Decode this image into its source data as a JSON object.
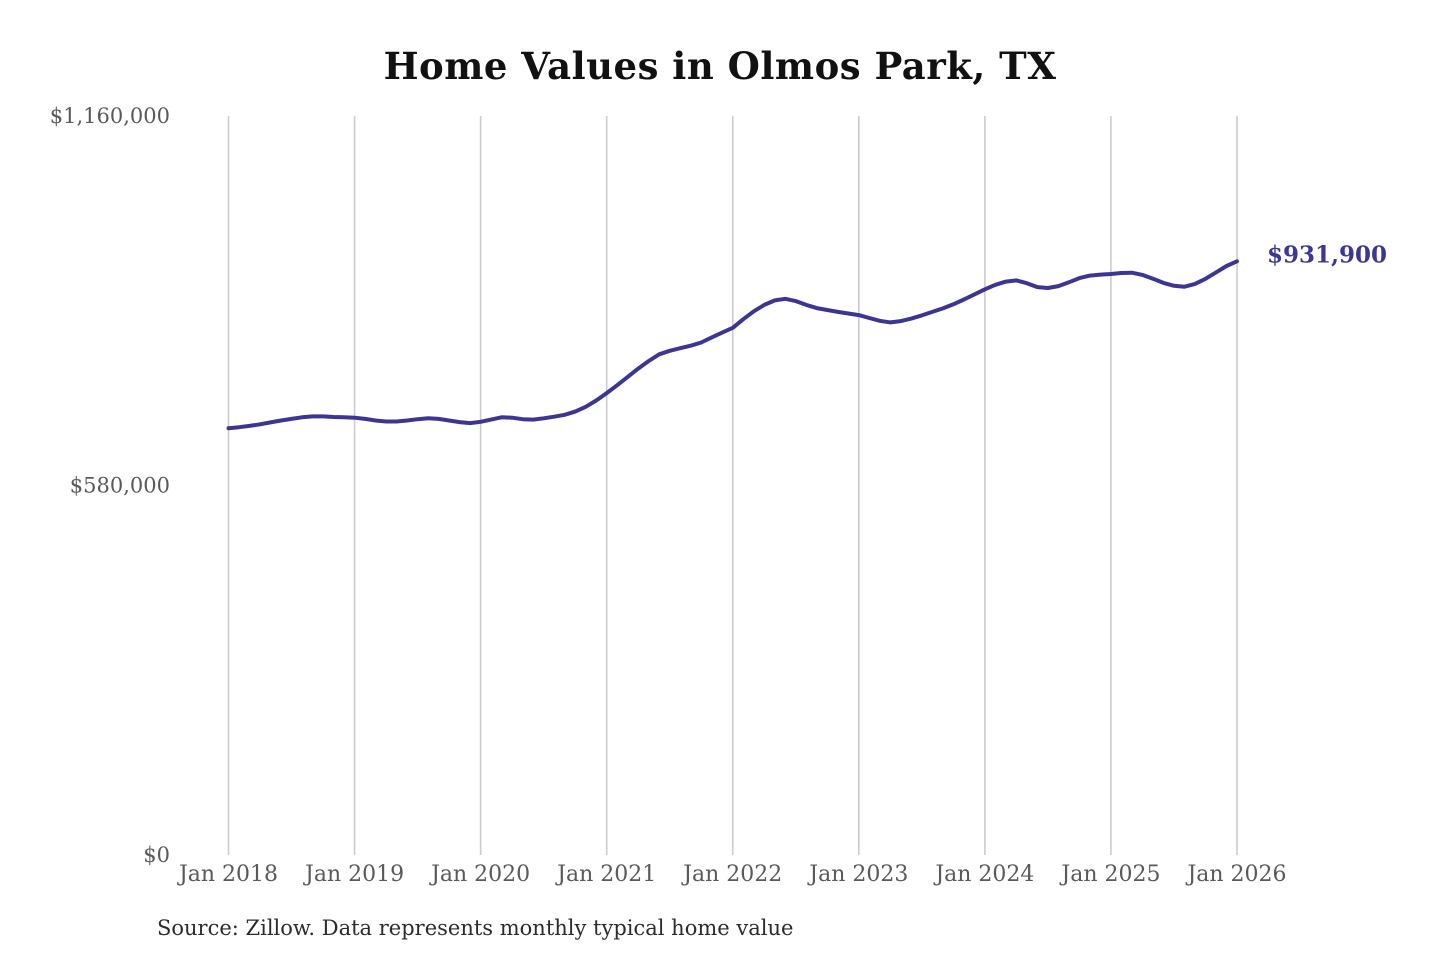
{
  "title": "Home Values in Olmos Park, TX",
  "source_note": "Source: Zillow. Data represents monthly typical home value",
  "colors": {
    "line": "#3c3693",
    "annotation": "#3b3794",
    "grid": "#cccccc",
    "axis_text": "#59595c",
    "title_text": "#111111",
    "source_text": "#2b2b2b",
    "background": "#ffffff"
  },
  "chart_data": {
    "type": "line",
    "title": "Home Values in Olmos Park, TX",
    "xlabel": "",
    "ylabel": "",
    "legend": "none",
    "grid": "vertical-only",
    "ylim": [
      0,
      1160000
    ],
    "y_ticks": [
      {
        "value": 0,
        "label": "$0"
      },
      {
        "value": 580000,
        "label": "$580,000"
      },
      {
        "value": 1160000,
        "label": "$1,160,000"
      }
    ],
    "x_tick_labels": [
      "Jan 2018",
      "Jan 2019",
      "Jan 2020",
      "Jan 2021",
      "Jan 2022",
      "Jan 2023",
      "Jan 2024",
      "Jan 2025",
      "Jan 2026"
    ],
    "end_value": 931900,
    "end_value_label": "$931,900",
    "series": [
      {
        "name": "Monthly typical home value",
        "start": "Jan 2018",
        "interval": "monthly",
        "values": [
          670000,
          671500,
          673500,
          676000,
          679000,
          682000,
          684500,
          687000,
          688500,
          688500,
          687500,
          687000,
          686500,
          684500,
          682000,
          680500,
          680500,
          682000,
          684000,
          685500,
          684500,
          682000,
          679500,
          678000,
          680000,
          683500,
          687000,
          686500,
          684000,
          683500,
          685500,
          688000,
          691000,
          696000,
          703500,
          713500,
          725000,
          737500,
          750500,
          763500,
          775500,
          786000,
          791500,
          795500,
          799500,
          804500,
          812500,
          820000,
          827500,
          841000,
          853500,
          863500,
          870500,
          873000,
          869500,
          863500,
          858500,
          855500,
          852500,
          850000,
          847500,
          843000,
          838500,
          836000,
          838000,
          842000,
          847000,
          852500,
          858000,
          864500,
          872000,
          880000,
          888000,
          895000,
          900000,
          902000,
          897500,
          891500,
          890000,
          893000,
          899000,
          905500,
          909500,
          911000,
          912000,
          913500,
          914000,
          910500,
          904500,
          898000,
          893500,
          892000,
          896500,
          904500,
          914500,
          924500,
          931900
        ]
      }
    ]
  }
}
